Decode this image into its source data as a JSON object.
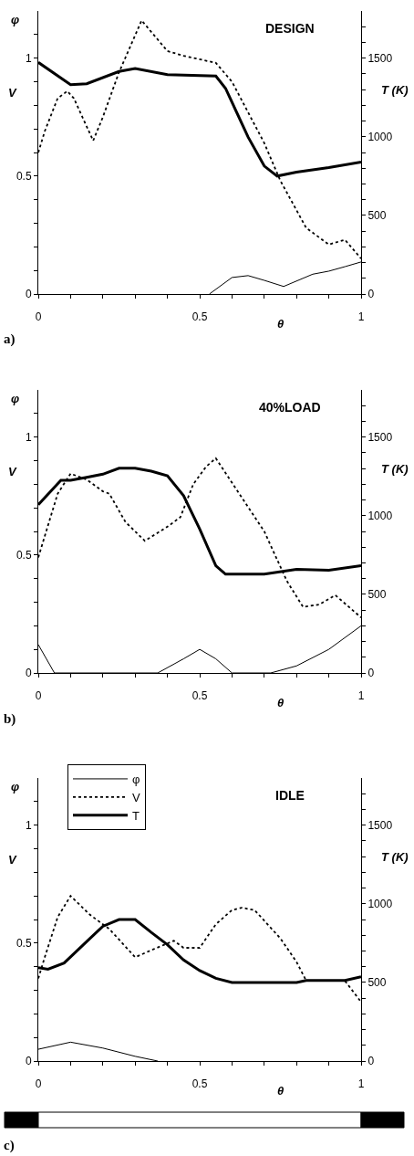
{
  "chart_data": [
    {
      "type": "line",
      "title": "DESIGN",
      "xlabel": "θ",
      "ylabel": "V",
      "y2label": "T (K)",
      "annotations": [
        "φ",
        "a)"
      ],
      "legend": false,
      "xlim": [
        0,
        1
      ],
      "xticks": [
        0,
        {
          "value": 0.1,
          "label": null
        },
        {
          "value": 0.2,
          "label": null
        },
        {
          "value": 0.3,
          "label": null
        },
        {
          "value": 0.4,
          "label": null
        },
        0.5,
        {
          "value": 0.6,
          "label": null
        },
        {
          "value": 0.7,
          "label": null
        },
        {
          "value": 0.8,
          "label": null
        },
        {
          "value": 0.9,
          "label": null
        },
        1
      ],
      "ylim": [
        0,
        1.2
      ],
      "yticks": [
        0,
        {
          "value": 0.1,
          "label": null
        },
        {
          "value": 0.2,
          "label": null
        },
        {
          "value": 0.3,
          "label": null
        },
        {
          "value": 0.4,
          "label": null
        },
        0.5,
        {
          "value": 0.6,
          "label": null
        },
        {
          "value": 0.7,
          "label": null
        },
        {
          "value": 0.8,
          "label": null
        },
        {
          "value": 0.9,
          "label": null
        },
        1,
        {
          "value": 1.1,
          "label": null
        }
      ],
      "y2lim": [
        0,
        1800
      ],
      "y2ticks": [
        0,
        {
          "value": 100,
          "label": null
        },
        {
          "value": 200,
          "label": null
        },
        {
          "value": 300,
          "label": null
        },
        {
          "value": 400,
          "label": null
        },
        500,
        {
          "value": 600,
          "label": null
        },
        {
          "value": 700,
          "label": null
        },
        {
          "value": 800,
          "label": null
        },
        {
          "value": 900,
          "label": null
        },
        1000,
        {
          "value": 1100,
          "label": null
        },
        {
          "value": 1200,
          "label": null
        },
        {
          "value": 1300,
          "label": null
        },
        {
          "value": 1400,
          "label": null
        },
        1500,
        {
          "value": 1600,
          "label": null
        },
        {
          "value": 1700,
          "label": null
        }
      ],
      "series": [
        {
          "color": "#000000",
          "line_style": "solid",
          "x": [
            0.53,
            0.6,
            0.65,
            0.7,
            0.76,
            0.85,
            0.9,
            0.95,
            1.0
          ],
          "values": [
            0,
            0.07,
            0.078,
            0.058,
            0.032,
            0.084,
            0.097,
            0.116,
            0.136
          ]
        },
        {
          "color": "#000000",
          "line_style": "dotted",
          "x": [
            0,
            0.02,
            0.06,
            0.09,
            0.11,
            0.17,
            0.2,
            0.25,
            0.32,
            0.4,
            0.45,
            0.55,
            0.6,
            0.7,
            0.75,
            0.83,
            0.9,
            0.95,
            1.0
          ],
          "values": [
            0.6,
            0.69,
            0.83,
            0.86,
            0.83,
            0.65,
            0.75,
            0.94,
            1.16,
            1.03,
            1.01,
            0.98,
            0.9,
            0.64,
            0.48,
            0.28,
            0.21,
            0.23,
            0.15
          ]
        },
        {
          "color": "#000000",
          "line_style": "solid",
          "axis": "y2",
          "x": [
            0,
            0.1,
            0.15,
            0.25,
            0.3,
            0.4,
            0.55,
            0.58,
            0.65,
            0.7,
            0.74,
            0.8,
            0.9,
            1.0
          ],
          "values": [
            1473,
            1331,
            1337,
            1415,
            1434,
            1395,
            1386,
            1308,
            998,
            814,
            750,
            775,
            804,
            839
          ]
        }
      ]
    },
    {
      "type": "line",
      "title": "40%LOAD",
      "xlabel": "θ",
      "ylabel": "V",
      "y2label": "T (K)",
      "annotations": [
        "φ",
        "b)"
      ],
      "legend": false,
      "xlim": [
        0,
        1
      ],
      "xticks": [
        0,
        {
          "value": 0.1,
          "label": null
        },
        {
          "value": 0.2,
          "label": null
        },
        {
          "value": 0.3,
          "label": null
        },
        {
          "value": 0.4,
          "label": null
        },
        0.5,
        {
          "value": 0.6,
          "label": null
        },
        {
          "value": 0.7,
          "label": null
        },
        {
          "value": 0.8,
          "label": null
        },
        {
          "value": 0.9,
          "label": null
        },
        1
      ],
      "ylim": [
        0,
        1.2
      ],
      "yticks": [
        0,
        {
          "value": 0.1,
          "label": null
        },
        {
          "value": 0.2,
          "label": null
        },
        {
          "value": 0.3,
          "label": null
        },
        {
          "value": 0.4,
          "label": null
        },
        0.5,
        {
          "value": 0.6,
          "label": null
        },
        {
          "value": 0.7,
          "label": null
        },
        {
          "value": 0.8,
          "label": null
        },
        {
          "value": 0.9,
          "label": null
        },
        1,
        {
          "value": 1.1,
          "label": null
        }
      ],
      "y2lim": [
        0,
        1800
      ],
      "y2ticks": [
        0,
        {
          "value": 100,
          "label": null
        },
        {
          "value": 200,
          "label": null
        },
        {
          "value": 300,
          "label": null
        },
        {
          "value": 400,
          "label": null
        },
        500,
        {
          "value": 600,
          "label": null
        },
        {
          "value": 700,
          "label": null
        },
        {
          "value": 800,
          "label": null
        },
        {
          "value": 900,
          "label": null
        },
        1000,
        {
          "value": 1100,
          "label": null
        },
        {
          "value": 1200,
          "label": null
        },
        {
          "value": 1300,
          "label": null
        },
        {
          "value": 1400,
          "label": null
        },
        1500,
        {
          "value": 1600,
          "label": null
        },
        {
          "value": 1700,
          "label": null
        }
      ],
      "series": [
        {
          "color": "#000000",
          "line_style": "solid",
          "x": [
            0,
            0.05,
            0.37,
            0.45,
            0.5,
            0.55,
            0.6,
            0.72,
            0.8,
            0.9,
            1.0
          ],
          "values": [
            0.12,
            0,
            0,
            0.06,
            0.1,
            0.06,
            0,
            0,
            0.03,
            0.1,
            0.2
          ]
        },
        {
          "color": "#000000",
          "line_style": "dotted",
          "x": [
            0,
            0.02,
            0.06,
            0.1,
            0.15,
            0.2,
            0.22,
            0.27,
            0.33,
            0.4,
            0.44,
            0.48,
            0.52,
            0.55,
            0.62,
            0.7,
            0.77,
            0.82,
            0.87,
            0.92,
            1.0
          ],
          "values": [
            0.49,
            0.58,
            0.76,
            0.845,
            0.82,
            0.77,
            0.76,
            0.64,
            0.56,
            0.62,
            0.66,
            0.8,
            0.875,
            0.91,
            0.765,
            0.6,
            0.39,
            0.28,
            0.29,
            0.33,
            0.235
          ]
        },
        {
          "color": "#000000",
          "line_style": "solid",
          "axis": "y2",
          "x": [
            0,
            0.07,
            0.1,
            0.15,
            0.2,
            0.25,
            0.3,
            0.35,
            0.4,
            0.45,
            0.5,
            0.55,
            0.58,
            0.7,
            0.8,
            0.9,
            1.0
          ],
          "values": [
            1070,
            1225,
            1225,
            1244,
            1264,
            1302,
            1302,
            1283,
            1254,
            1128,
            915,
            682,
            628,
            628,
            659,
            653,
            682
          ]
        }
      ]
    },
    {
      "type": "line",
      "title": "IDLE",
      "xlabel": "θ",
      "ylabel": "V",
      "y2label": "T (K)",
      "annotations": [
        "φ",
        "c)"
      ],
      "legend": "top left",
      "xlim": [
        0,
        1
      ],
      "xticks": [
        0,
        {
          "value": 0.1,
          "label": null
        },
        {
          "value": 0.2,
          "label": null
        },
        {
          "value": 0.3,
          "label": null
        },
        {
          "value": 0.4,
          "label": null
        },
        0.5,
        {
          "value": 0.6,
          "label": null
        },
        {
          "value": 0.7,
          "label": null
        },
        {
          "value": 0.8,
          "label": null
        },
        {
          "value": 0.9,
          "label": null
        },
        1
      ],
      "ylim": [
        0,
        1.2
      ],
      "yticks": [
        0,
        {
          "value": 0.1,
          "label": null
        },
        {
          "value": 0.2,
          "label": null
        },
        {
          "value": 0.3,
          "label": null
        },
        {
          "value": 0.4,
          "label": null
        },
        0.5,
        {
          "value": 0.6,
          "label": null
        },
        {
          "value": 0.7,
          "label": null
        },
        {
          "value": 0.8,
          "label": null
        },
        {
          "value": 0.9,
          "label": null
        },
        1,
        {
          "value": 1.1,
          "label": null
        }
      ],
      "y2lim": [
        0,
        1800
      ],
      "y2ticks": [
        0,
        {
          "value": 100,
          "label": null
        },
        {
          "value": 200,
          "label": null
        },
        {
          "value": 300,
          "label": null
        },
        {
          "value": 400,
          "label": null
        },
        500,
        {
          "value": 600,
          "label": null
        },
        {
          "value": 700,
          "label": null
        },
        {
          "value": 800,
          "label": null
        },
        {
          "value": 900,
          "label": null
        },
        1000,
        {
          "value": 1100,
          "label": null
        },
        {
          "value": 1200,
          "label": null
        },
        {
          "value": 1300,
          "label": null
        },
        {
          "value": 1400,
          "label": null
        },
        1500,
        {
          "value": 1600,
          "label": null
        },
        {
          "value": 1700,
          "label": null
        }
      ],
      "series": [
        {
          "name": "φ",
          "color": "#000000",
          "line_style": "solid",
          "x": [
            0,
            0.1,
            0.2,
            0.3,
            0.37
          ],
          "values": [
            0.05,
            0.08,
            0.055,
            0.02,
            0
          ]
        },
        {
          "name": "V",
          "color": "#000000",
          "line_style": "dotted",
          "x": [
            0,
            0.02,
            0.06,
            0.1,
            0.13,
            0.16,
            0.22,
            0.3,
            0.35,
            0.42,
            0.45,
            0.5,
            0.55,
            0.6,
            0.63,
            0.67,
            0.75,
            0.8,
            0.83,
            0.95,
            1.0
          ],
          "values": [
            0.35,
            0.44,
            0.61,
            0.7,
            0.66,
            0.62,
            0.56,
            0.44,
            0.47,
            0.51,
            0.48,
            0.48,
            0.58,
            0.64,
            0.65,
            0.64,
            0.52,
            0.42,
            0.34,
            0.34,
            0.25
          ]
        },
        {
          "name": "T",
          "color": "#000000",
          "line_style": "solid",
          "axis": "y2",
          "x": [
            0,
            0.03,
            0.08,
            0.15,
            0.2,
            0.25,
            0.3,
            0.35,
            0.4,
            0.45,
            0.5,
            0.55,
            0.6,
            0.8,
            0.83,
            0.95,
            1.0
          ],
          "values": [
            594,
            584,
            623,
            760,
            857,
            900,
            900,
            818,
            740,
            643,
            575,
            526,
            500,
            500,
            512,
            512,
            536
          ]
        }
      ]
    }
  ]
}
